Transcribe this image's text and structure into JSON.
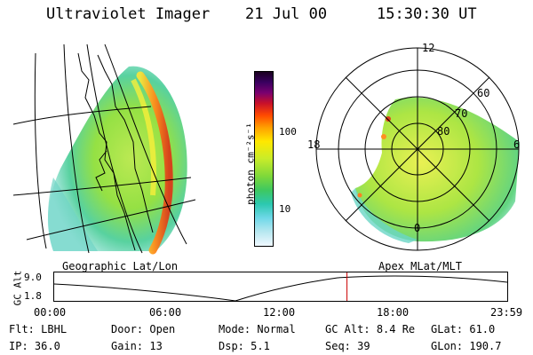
{
  "header": {
    "title": "Ultraviolet Imager",
    "date": "21 Jul 00",
    "time": "15:30:30 UT"
  },
  "colorbar": {
    "unit_label": "photon cm⁻²s⁻¹",
    "ticks": [
      "100",
      "10"
    ]
  },
  "maps": {
    "left_label": "Geographic Lat/Lon",
    "right_label": "Apex MLat/MLT",
    "polar_mlt_labels": [
      "12",
      "18",
      "6",
      "0"
    ],
    "polar_lat_labels": [
      "60",
      "70",
      "80"
    ]
  },
  "timeline": {
    "ylabel": "GC Alt",
    "y_ticks": [
      "9.0",
      "1.8"
    ],
    "x_ticks": [
      "00:00",
      "06:00",
      "12:00",
      "18:00",
      "23:59"
    ],
    "current_marker_hours": 15.51
  },
  "info": {
    "flt_label": "Flt:",
    "flt_value": "LBHL",
    "ip_label": "IP:",
    "ip_value": "36.0",
    "door_label": "Door:",
    "door_value": "Open",
    "gain_label": "Gain:",
    "gain_value": "13",
    "mode_label": "Mode:",
    "mode_value": "Normal",
    "dsp_label": "Dsp:",
    "dsp_value": "5.1",
    "gcalt_label": "GC Alt:",
    "gcalt_value": "8.4 Re",
    "seq_label": "Seq:",
    "seq_value": "39",
    "glat_label": "GLat:",
    "glat_value": "61.0",
    "glon_label": "GLon:",
    "glon_value": "190.7"
  },
  "colors": {
    "marker": "#cc0000"
  }
}
